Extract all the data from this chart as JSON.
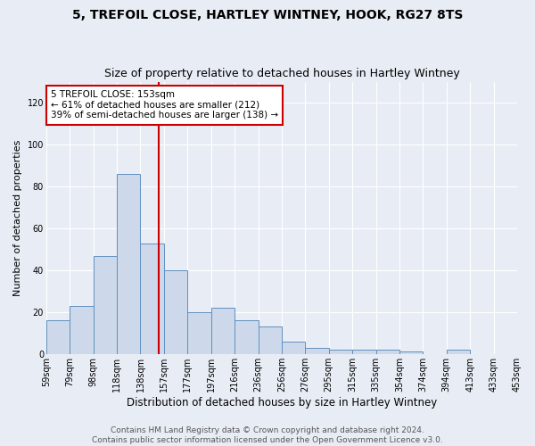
{
  "title1": "5, TREFOIL CLOSE, HARTLEY WINTNEY, HOOK, RG27 8TS",
  "title2": "Size of property relative to detached houses in Hartley Wintney",
  "xlabel": "Distribution of detached houses by size in Hartley Wintney",
  "ylabel": "Number of detached properties",
  "bar_values": [
    16,
    23,
    47,
    86,
    53,
    40,
    20,
    22,
    16,
    13,
    6,
    3,
    2,
    2,
    2,
    1,
    0,
    2,
    0,
    0
  ],
  "bin_labels": [
    "59sqm",
    "79sqm",
    "98sqm",
    "118sqm",
    "138sqm",
    "157sqm",
    "177sqm",
    "197sqm",
    "216sqm",
    "236sqm",
    "256sqm",
    "276sqm",
    "295sqm",
    "315sqm",
    "335sqm",
    "354sqm",
    "374sqm",
    "394sqm",
    "413sqm",
    "433sqm",
    "453sqm"
  ],
  "bar_color": "#cdd9ea",
  "bar_edge_color": "#6090c0",
  "vline_color": "#cc0000",
  "annotation_text": "5 TREFOIL CLOSE: 153sqm\n← 61% of detached houses are smaller (212)\n39% of semi-detached houses are larger (138) →",
  "annotation_box_color": "#ffffff",
  "annotation_box_edge": "#cc0000",
  "ylim": [
    0,
    130
  ],
  "yticks": [
    0,
    20,
    40,
    60,
    80,
    100,
    120
  ],
  "footer1": "Contains HM Land Registry data © Crown copyright and database right 2024.",
  "footer2": "Contains public sector information licensed under the Open Government Licence v3.0.",
  "background_color": "#e8edf5",
  "plot_background": "#e8edf5",
  "title1_fontsize": 10,
  "title2_fontsize": 9,
  "xlabel_fontsize": 8.5,
  "ylabel_fontsize": 8,
  "tick_fontsize": 7,
  "footer_fontsize": 6.5,
  "annotation_fontsize": 7.5
}
